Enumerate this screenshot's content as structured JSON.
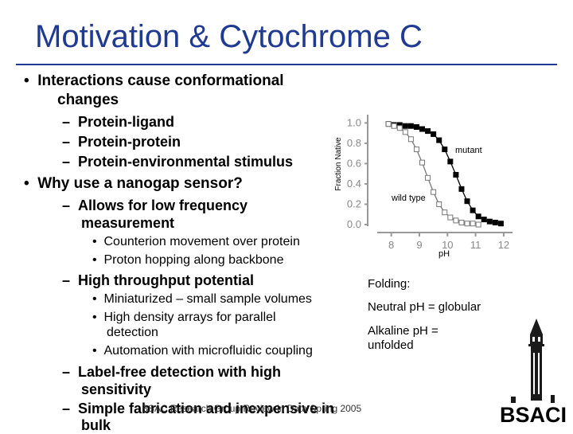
{
  "slide": {
    "title": "Motivation & Cytochrome C",
    "bullets": {
      "b1_line1": "Interactions cause conformational",
      "b1_line2": "changes",
      "b1_subs": [
        "Protein-ligand",
        "Protein-protein",
        "Protein-environmental stimulus"
      ],
      "b2": "Why use a nanogap sensor?",
      "b2_sub1_line1": "Allows for low frequency",
      "b2_sub1_line2": "measurement",
      "b2_sub1_items": [
        "Counterion movement over protein",
        "Proton hopping along backbone"
      ],
      "b2_sub2": "High throughput potential",
      "b2_sub2_item1": "Miniaturized – small sample volumes",
      "b2_sub2_item2_line1": "High density arrays for parallel",
      "b2_sub2_item2_line2": "detection",
      "b2_sub2_item3": "Automation with microfluidic coupling",
      "b2_sub3_line1": "Label-free detection with high",
      "b2_sub3_line2": "sensitivity",
      "b2_sub4_line1": "Simple fabrication and inexpensive in",
      "b2_sub4_line2": "bulk"
    },
    "folding": {
      "heading": "Folding:",
      "neutral": "Neutral pH = globular",
      "alkaline_line1": "Alkaline pH =",
      "alkaline_line2": "unfolded"
    },
    "footer": "BSAC Research Group Review in Data Spring 2005",
    "logo_text": "BSACI"
  },
  "chart_data": {
    "type": "line",
    "xlabel": "pH",
    "ylabel": "Fraction Native",
    "xlim": [
      7.5,
      12.2
    ],
    "ylim": [
      0,
      1.05
    ],
    "x_ticks": [
      "8",
      "9",
      "10",
      "11",
      "12"
    ],
    "y_ticks": [
      "0.0",
      "0.2",
      "0.4",
      "0.6",
      "0.8",
      "1.0"
    ],
    "annotations": [
      "mutant",
      "wild type"
    ],
    "series": [
      {
        "name": "mutant",
        "marker": "filled-square",
        "color": "#000000",
        "x": [
          7.9,
          8.1,
          8.3,
          8.5,
          8.7,
          8.9,
          9.1,
          9.3,
          9.5,
          9.7,
          9.9,
          10.1,
          10.3,
          10.5,
          10.7,
          10.9,
          11.1,
          11.3,
          11.5,
          11.7,
          11.9
        ],
        "y": [
          0.99,
          0.98,
          0.98,
          0.97,
          0.97,
          0.96,
          0.94,
          0.92,
          0.89,
          0.83,
          0.74,
          0.62,
          0.49,
          0.35,
          0.23,
          0.14,
          0.08,
          0.05,
          0.03,
          0.02,
          0.01
        ]
      },
      {
        "name": "wild type",
        "marker": "open-square",
        "color": "#777777",
        "x": [
          7.9,
          8.1,
          8.3,
          8.5,
          8.7,
          8.9,
          9.1,
          9.3,
          9.5,
          9.7,
          9.9,
          10.1,
          10.3,
          10.5,
          10.7,
          10.9,
          11.1
        ],
        "y": [
          0.99,
          0.97,
          0.95,
          0.91,
          0.84,
          0.74,
          0.61,
          0.46,
          0.32,
          0.2,
          0.12,
          0.07,
          0.04,
          0.02,
          0.01,
          0.01,
          0.0
        ]
      }
    ]
  }
}
